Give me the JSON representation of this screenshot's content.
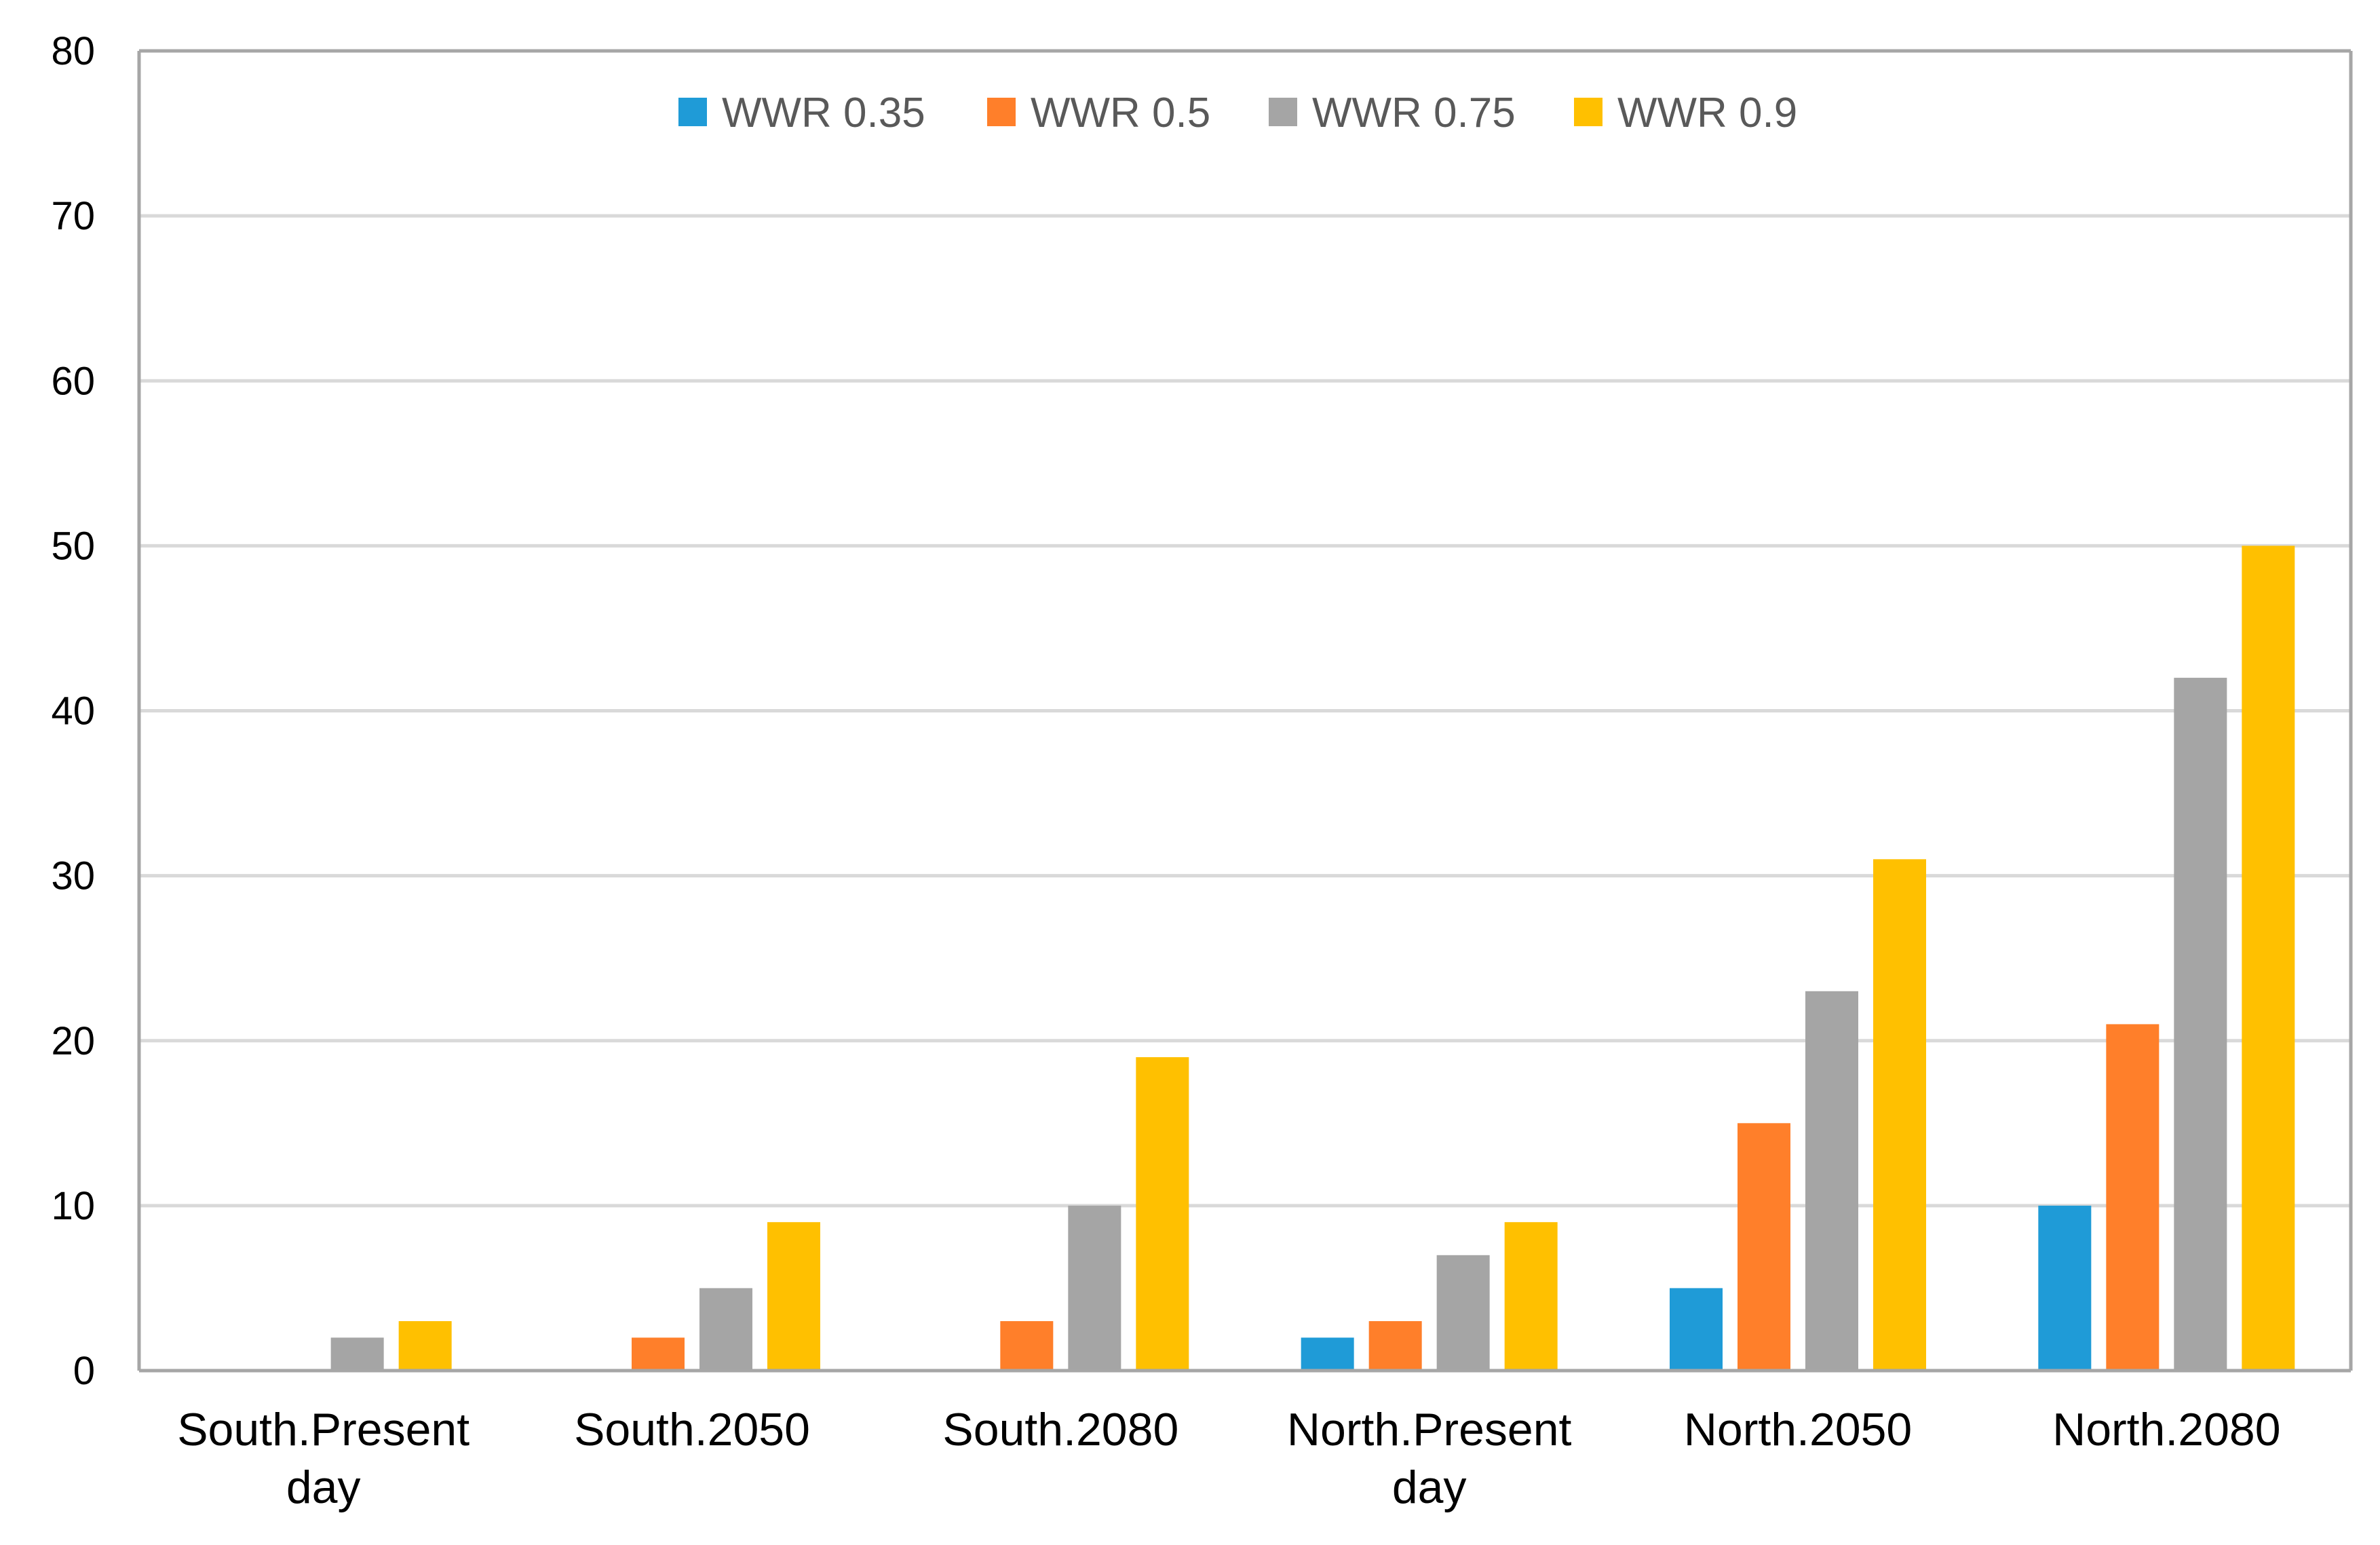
{
  "chart_data": {
    "type": "bar",
    "title": "",
    "xlabel": "",
    "ylabel": "",
    "ylim": [
      0,
      80
    ],
    "yticks": [
      0,
      10,
      20,
      30,
      40,
      50,
      60,
      70,
      80
    ],
    "grid": true,
    "legend_position": "top-center",
    "categories": [
      [
        "South.Present",
        "day"
      ],
      [
        "South.2050"
      ],
      [
        "South.2080"
      ],
      [
        "North.Present",
        "day"
      ],
      [
        "North.2050"
      ],
      [
        "North.2080"
      ]
    ],
    "series": [
      {
        "name": "WWR 0.35",
        "color": "#1f9bd7",
        "values": [
          0,
          0,
          0,
          2,
          5,
          10
        ]
      },
      {
        "name": "WWR 0.5",
        "color": "#ff7f2a",
        "values": [
          0,
          2,
          3,
          3,
          15,
          21
        ]
      },
      {
        "name": "WWR 0.75",
        "color": "#a5a5a5",
        "values": [
          2,
          5,
          10,
          7,
          23,
          42
        ]
      },
      {
        "name": "WWR 0.9",
        "color": "#ffc000",
        "values": [
          3,
          9,
          19,
          9,
          31,
          50
        ]
      }
    ],
    "colors": {
      "gridline": "#d9d9d9",
      "axis": "#a6a6a6",
      "background": "#ffffff"
    }
  }
}
